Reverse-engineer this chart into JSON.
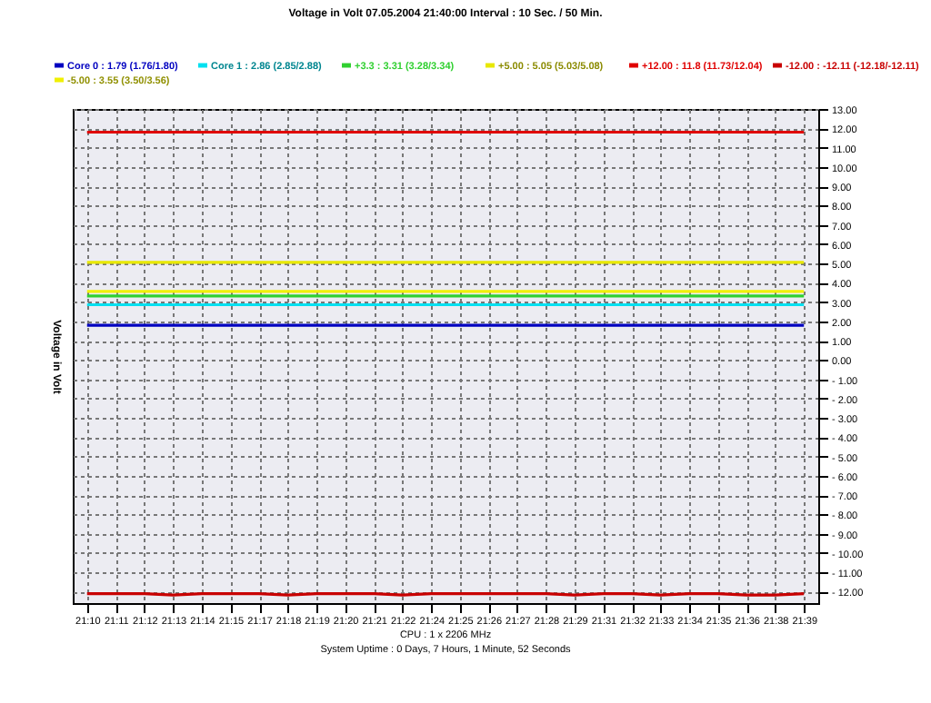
{
  "chart_data": {
    "type": "line",
    "title": "Voltage in Volt 07.05.2004 21:40:00 Interval : 10 Sec. / 50 Min.",
    "ylabel": "Voltage in Volt",
    "categories": [
      "21:10",
      "21:11",
      "21:12",
      "21:13",
      "21:14",
      "21:15",
      "21:17",
      "21:18",
      "21:19",
      "21:20",
      "21:21",
      "21:22",
      "21:24",
      "21:25",
      "21:26",
      "21:27",
      "21:28",
      "21:29",
      "21:31",
      "21:32",
      "21:33",
      "21:34",
      "21:35",
      "21:36",
      "21:38",
      "21:39"
    ],
    "series": [
      {
        "name": "Core 0 : 1.79 (1.76/1.80)",
        "color": "#0000c0",
        "values": [
          1.79,
          1.79,
          1.79,
          1.79,
          1.79,
          1.79,
          1.79,
          1.79,
          1.79,
          1.79,
          1.79,
          1.79,
          1.79,
          1.79,
          1.79,
          1.79,
          1.79,
          1.79,
          1.79,
          1.79,
          1.79,
          1.79,
          1.79,
          1.79,
          1.79,
          1.79
        ]
      },
      {
        "name": "Core 1 : 2.86 (2.85/2.88)",
        "color": "#00e0f0",
        "values": [
          2.86,
          2.86,
          2.86,
          2.86,
          2.86,
          2.86,
          2.86,
          2.86,
          2.86,
          2.86,
          2.86,
          2.86,
          2.86,
          2.86,
          2.86,
          2.86,
          2.86,
          2.86,
          2.86,
          2.86,
          2.86,
          2.86,
          2.86,
          2.86,
          2.86,
          2.86
        ]
      },
      {
        "name": "+3.3 : 3.31 (3.28/3.34)",
        "color": "#30d030",
        "values": [
          3.31,
          3.31,
          3.31,
          3.31,
          3.31,
          3.31,
          3.31,
          3.31,
          3.31,
          3.31,
          3.31,
          3.31,
          3.31,
          3.31,
          3.31,
          3.31,
          3.31,
          3.31,
          3.31,
          3.31,
          3.31,
          3.31,
          3.31,
          3.31,
          3.31,
          3.31
        ]
      },
      {
        "name": "+5.00 : 5.05 (5.03/5.08)",
        "color": "#e8e800",
        "values": [
          5.05,
          5.05,
          5.05,
          5.05,
          5.05,
          5.05,
          5.05,
          5.05,
          5.05,
          5.05,
          5.05,
          5.05,
          5.05,
          5.05,
          5.05,
          5.05,
          5.05,
          5.05,
          5.05,
          5.05,
          5.05,
          5.05,
          5.05,
          5.05,
          5.05,
          5.05
        ]
      },
      {
        "name": "+12.00 : 11.8 (11.73/12.04)",
        "color": "#e00000",
        "values": [
          11.8,
          11.8,
          11.8,
          11.8,
          11.8,
          11.8,
          11.8,
          11.8,
          11.8,
          11.8,
          11.8,
          11.8,
          11.8,
          11.8,
          11.8,
          11.8,
          11.8,
          11.8,
          11.8,
          11.8,
          11.8,
          11.8,
          11.8,
          11.8,
          11.8,
          11.8
        ]
      },
      {
        "name": "-12.00 : -12.11 (-12.18/-12.11)",
        "color": "#c80000",
        "values": [
          -12.11,
          -12.11,
          -12.11,
          -12.18,
          -12.11,
          -12.11,
          -12.11,
          -12.18,
          -12.11,
          -12.11,
          -12.11,
          -12.18,
          -12.11,
          -12.11,
          -12.11,
          -12.11,
          -12.11,
          -12.18,
          -12.11,
          -12.11,
          -12.18,
          -12.11,
          -12.11,
          -12.18,
          -12.18,
          -12.11
        ]
      },
      {
        "name": "-5.00 : 3.55 (3.50/3.56)",
        "color": "#f0f000",
        "values": [
          3.55,
          3.55,
          3.55,
          3.55,
          3.55,
          3.55,
          3.55,
          3.55,
          3.55,
          3.55,
          3.55,
          3.55,
          3.55,
          3.55,
          3.55,
          3.55,
          3.55,
          3.55,
          3.55,
          3.55,
          3.55,
          3.55,
          3.55,
          3.55,
          3.55,
          3.55
        ]
      }
    ],
    "ylim": [
      -12.6,
      13
    ],
    "yticks": [
      {
        "value": 13,
        "label": "13.00"
      },
      {
        "value": 12,
        "label": "12.00"
      },
      {
        "value": 11,
        "label": "11.00"
      },
      {
        "value": 10,
        "label": "10.00"
      },
      {
        "value": 9,
        "label": "9.00"
      },
      {
        "value": 8,
        "label": "8.00"
      },
      {
        "value": 7,
        "label": "7.00"
      },
      {
        "value": 6,
        "label": "6.00"
      },
      {
        "value": 5,
        "label": "5.00"
      },
      {
        "value": 4,
        "label": "4.00"
      },
      {
        "value": 3,
        "label": "3.00"
      },
      {
        "value": 2,
        "label": "2.00"
      },
      {
        "value": 1,
        "label": "1.00"
      },
      {
        "value": 0,
        "label": "0.00"
      },
      {
        "value": -1,
        "label": "- 1.00"
      },
      {
        "value": -2,
        "label": "- 2.00"
      },
      {
        "value": -3,
        "label": "- 3.00"
      },
      {
        "value": -4,
        "label": "- 4.00"
      },
      {
        "value": -5,
        "label": "- 5.00"
      },
      {
        "value": -6,
        "label": "- 6.00"
      },
      {
        "value": -7,
        "label": "- 7.00"
      },
      {
        "value": -8,
        "label": "- 8.00"
      },
      {
        "value": -9,
        "label": "- 9.00"
      },
      {
        "value": -10,
        "label": "- 10.00"
      },
      {
        "value": -11,
        "label": "- 11.00"
      },
      {
        "value": -12,
        "label": "- 12.00"
      }
    ],
    "grid": true,
    "legend": "top",
    "line_style": "solid",
    "marker": "none",
    "annotations": [
      "CPU : 1 x 2206 MHz",
      "System Uptime : 0 Days, 7 Hours, 1 Minute, 52 Seconds"
    ]
  }
}
